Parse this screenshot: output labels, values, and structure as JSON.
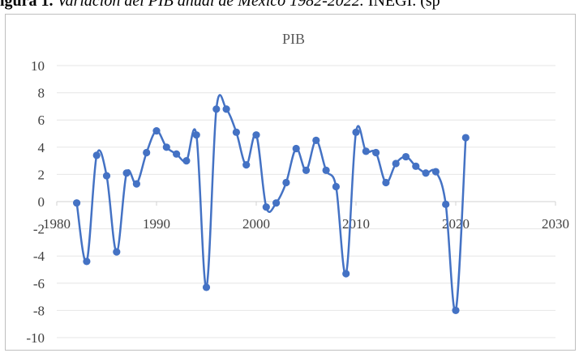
{
  "caption": {
    "label": "igura 1.",
    "text": " Variación del PIB anual de México 1982-2022.",
    "source": " INEGI. (sp"
  },
  "chart_data": {
    "type": "scatter",
    "mode": "smooth-line-with-markers",
    "title": "PIB",
    "xlabel": "",
    "ylabel": "",
    "xlim": [
      1980,
      2030
    ],
    "ylim": [
      -10,
      10
    ],
    "xticks": [
      1980,
      1990,
      2000,
      2010,
      2020,
      2030
    ],
    "yticks": [
      -10,
      -8,
      -6,
      -4,
      -2,
      0,
      2,
      4,
      6,
      8,
      10
    ],
    "grid": "horizontal",
    "legend": "none",
    "color": "#4472c4",
    "series": [
      {
        "x": [
          1982,
          1983,
          1984,
          1985,
          1986,
          1987,
          1988,
          1989,
          1990,
          1991,
          1992,
          1993,
          1994,
          1995,
          1996,
          1997,
          1998,
          1999,
          2000,
          2001,
          2002,
          2003,
          2004,
          2005,
          2006,
          2007,
          2008,
          2009,
          2010,
          2011,
          2012,
          2013,
          2014,
          2015,
          2016,
          2017,
          2018,
          2019,
          2020,
          2021
        ],
        "y": [
          -0.1,
          -4.4,
          3.4,
          1.9,
          -3.7,
          2.1,
          1.3,
          3.6,
          5.2,
          4.0,
          3.5,
          3.0,
          4.9,
          -6.3,
          6.8,
          6.8,
          5.1,
          2.7,
          4.9,
          -0.4,
          -0.1,
          1.4,
          3.9,
          2.3,
          4.5,
          2.3,
          1.1,
          -5.3,
          5.1,
          3.7,
          3.6,
          1.4,
          2.8,
          3.3,
          2.6,
          2.1,
          2.2,
          -0.2,
          -8.0,
          4.7
        ]
      }
    ]
  }
}
